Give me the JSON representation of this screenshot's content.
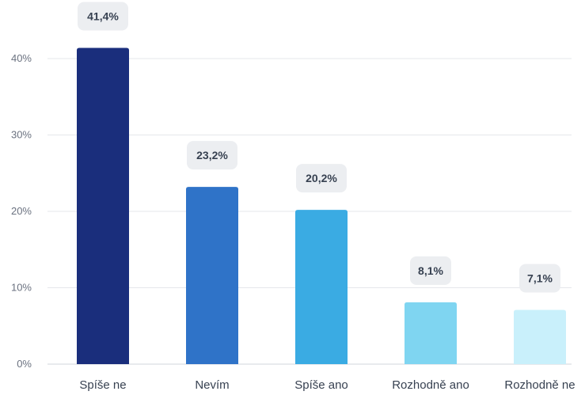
{
  "chart_data": {
    "type": "bar",
    "categories": [
      "Spíše ne",
      "Nevím",
      "Spíše ano",
      "Rozhodně ano",
      "Rozhodně ne"
    ],
    "values": [
      41.4,
      23.2,
      20.2,
      8.1,
      7.1
    ],
    "value_labels": [
      "41,4%",
      "23,2%",
      "20,2%",
      "8,1%",
      "7,1%"
    ],
    "colors": [
      "#1a2e7c",
      "#2f73c8",
      "#3aabe3",
      "#7fd5f1",
      "#c9f0fb"
    ],
    "y_ticks": [
      0,
      10,
      20,
      30,
      40
    ],
    "y_tick_labels": [
      "0%",
      "10%",
      "20%",
      "30%",
      "40%"
    ],
    "ylim": [
      0,
      45
    ],
    "grid": true,
    "title": "",
    "xlabel": "",
    "ylabel": ""
  }
}
